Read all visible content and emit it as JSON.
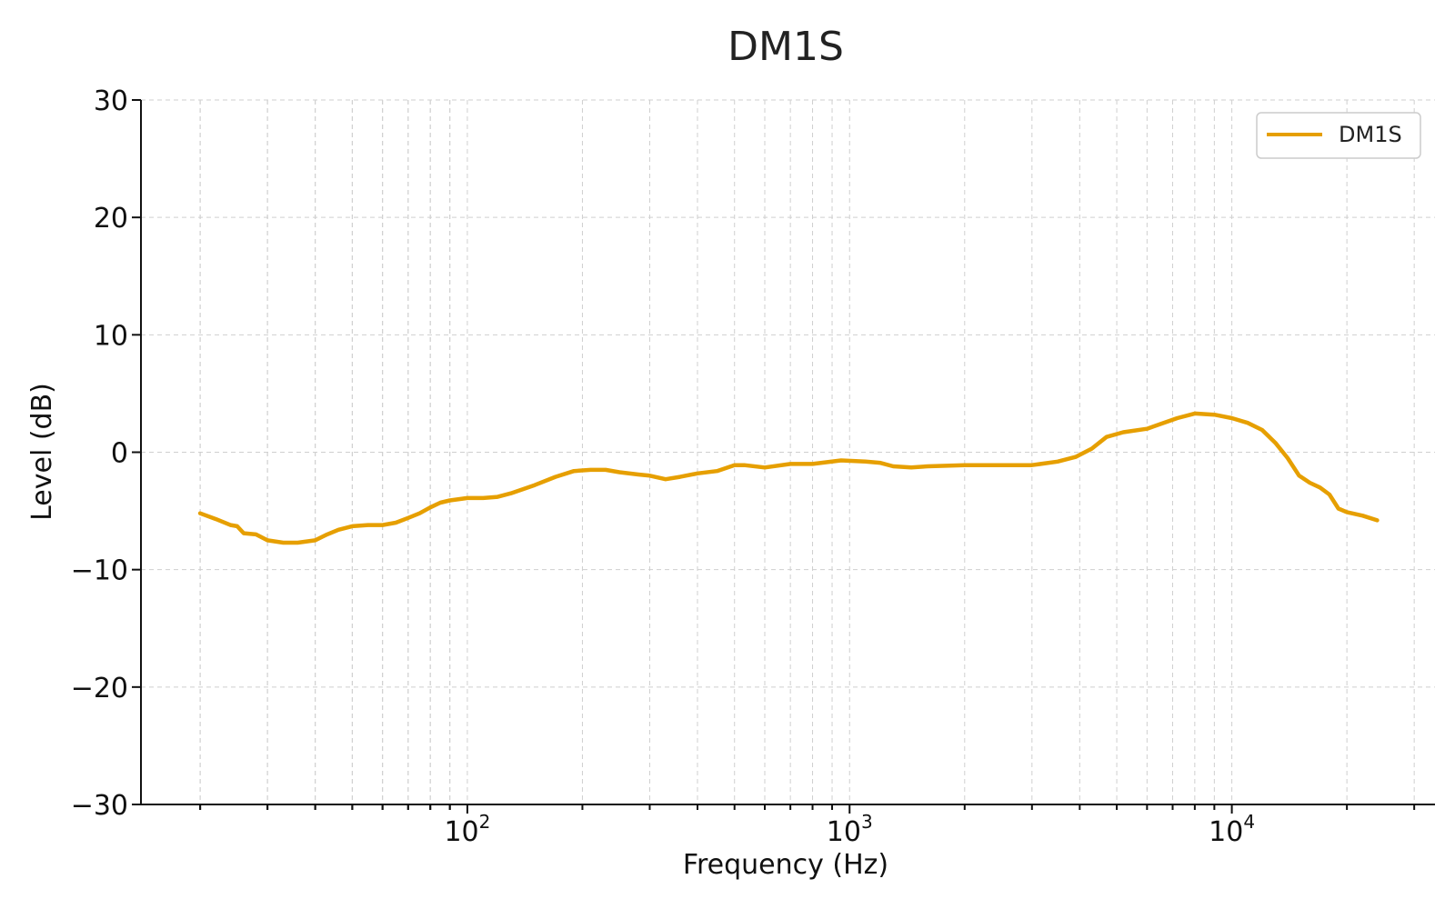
{
  "chart_data": {
    "type": "line",
    "title": "DM1S",
    "xlabel": "Frequency (Hz)",
    "ylabel": "Level (dB)",
    "xscale": "log",
    "xlim": [
      14,
      34000
    ],
    "ylim": [
      -30,
      30
    ],
    "yticks": [
      -30,
      -20,
      -10,
      0,
      10,
      20,
      30
    ],
    "ytick_labels": [
      "−30",
      "−20",
      "−10",
      "0",
      "10",
      "20",
      "30"
    ],
    "xticks": [
      {
        "value": 100,
        "base": "10",
        "exp": "2"
      },
      {
        "value": 1000,
        "base": "10",
        "exp": "3"
      },
      {
        "value": 10000,
        "base": "10",
        "exp": "4"
      }
    ],
    "grid": true,
    "legend": {
      "placement": "top-right"
    },
    "series": [
      {
        "name": "DM1S",
        "color": "#E69F00",
        "x": [
          20,
          22,
          24,
          25,
          26,
          28,
          30,
          33,
          36,
          40,
          43,
          46,
          50,
          55,
          60,
          65,
          70,
          75,
          80,
          85,
          90,
          100,
          110,
          120,
          130,
          150,
          170,
          190,
          210,
          230,
          250,
          280,
          300,
          330,
          360,
          400,
          450,
          500,
          530,
          600,
          700,
          800,
          950,
          1100,
          1200,
          1300,
          1450,
          1600,
          2000,
          2500,
          3000,
          3500,
          3900,
          4300,
          4700,
          5200,
          6000,
          6500,
          7200,
          8000,
          9000,
          10000,
          11000,
          12000,
          13000,
          14000,
          15000,
          16000,
          17000,
          18000,
          19000,
          20000,
          22000,
          24000
        ],
        "y": [
          -5.2,
          -5.7,
          -6.2,
          -6.3,
          -6.9,
          -7.0,
          -7.5,
          -7.7,
          -7.7,
          -7.5,
          -7.0,
          -6.6,
          -6.3,
          -6.2,
          -6.2,
          -6.0,
          -5.6,
          -5.2,
          -4.7,
          -4.3,
          -4.1,
          -3.9,
          -3.9,
          -3.8,
          -3.5,
          -2.8,
          -2.1,
          -1.6,
          -1.5,
          -1.5,
          -1.7,
          -1.9,
          -2.0,
          -2.3,
          -2.1,
          -1.8,
          -1.6,
          -1.1,
          -1.1,
          -1.3,
          -1.0,
          -1.0,
          -0.7,
          -0.8,
          -0.9,
          -1.2,
          -1.3,
          -1.2,
          -1.1,
          -1.1,
          -1.1,
          -0.8,
          -0.4,
          0.3,
          1.3,
          1.7,
          2.0,
          2.4,
          2.9,
          3.3,
          3.2,
          2.9,
          2.5,
          1.9,
          0.8,
          -0.5,
          -2.0,
          -2.6,
          -3.0,
          -3.6,
          -4.8,
          -5.1,
          -5.4,
          -5.8
        ]
      }
    ]
  }
}
